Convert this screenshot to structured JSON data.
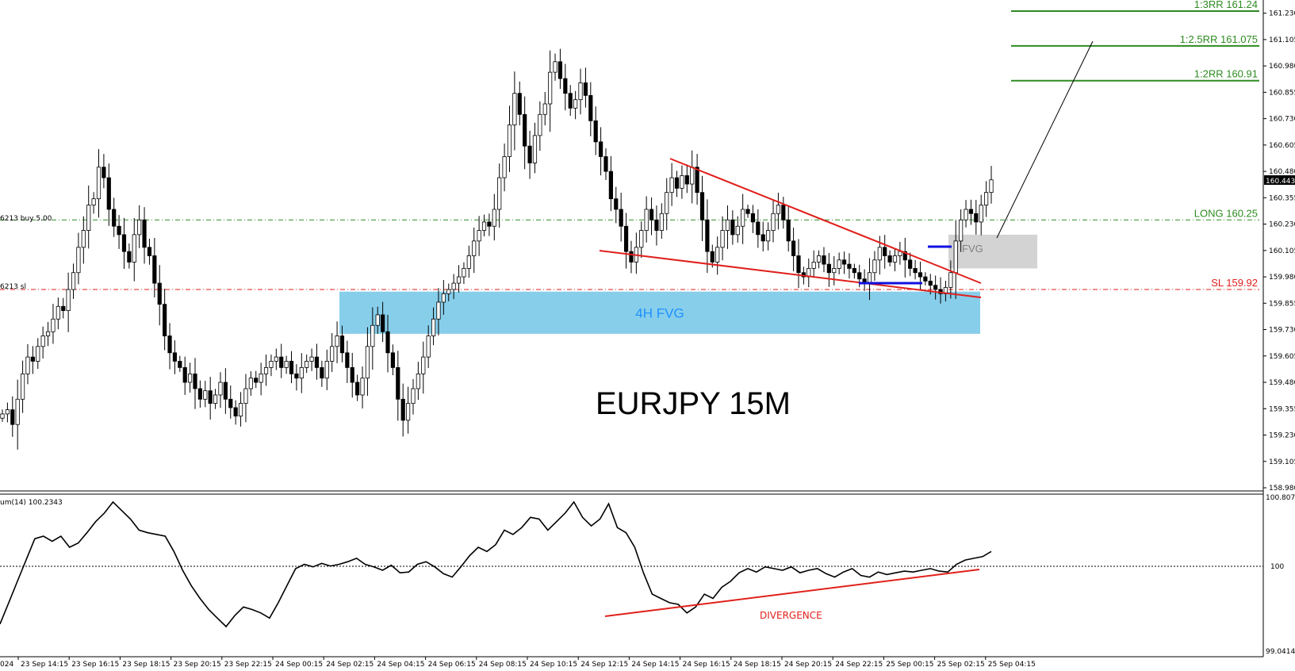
{
  "chart_data": {
    "type": "candlestick",
    "title": "EURJPY 15M",
    "price_axis": {
      "ticks": [
        "161.230",
        "161.105",
        "160.980",
        "160.855",
        "160.730",
        "160.605",
        "160.480",
        "160.355",
        "160.230",
        "160.105",
        "159.980",
        "159.855",
        "159.730",
        "159.605",
        "159.480",
        "159.355",
        "159.230",
        "159.105",
        "158.980"
      ],
      "ylim": [
        158.98,
        161.27
      ],
      "current_price": "160.443"
    },
    "time_axis": {
      "first_label": "024",
      "labels": [
        "23 Sep 14:15",
        "23 Sep 16:15",
        "23 Sep 18:15",
        "23 Sep 20:15",
        "23 Sep 22:15",
        "24 Sep 00:15",
        "24 Sep 02:15",
        "24 Sep 04:15",
        "24 Sep 06:15",
        "24 Sep 08:15",
        "24 Sep 10:15",
        "24 Sep 12:15",
        "24 Sep 14:15",
        "24 Sep 16:15",
        "24 Sep 18:15",
        "24 Sep 20:15",
        "24 Sep 22:15",
        "25 Sep 00:15",
        "25 Sep 02:15",
        "25 Sep 04:15"
      ]
    },
    "close_series": [
      159.33,
      159.35,
      159.28,
      159.4,
      159.52,
      159.6,
      159.58,
      159.65,
      159.7,
      159.72,
      159.78,
      159.84,
      159.82,
      159.92,
      160.0,
      160.12,
      160.2,
      160.32,
      160.35,
      160.5,
      160.45,
      160.3,
      160.22,
      160.18,
      160.1,
      160.05,
      160.18,
      160.25,
      160.12,
      160.08,
      159.95,
      159.85,
      159.7,
      159.62,
      159.58,
      159.55,
      159.48,
      159.52,
      159.45,
      159.4,
      159.44,
      159.38,
      159.42,
      159.48,
      159.4,
      159.36,
      159.32,
      159.38,
      159.45,
      159.5,
      159.48,
      159.52,
      159.55,
      159.58,
      159.6,
      159.55,
      159.58,
      159.52,
      159.5,
      159.55,
      159.58,
      159.6,
      159.55,
      159.5,
      159.58,
      159.65,
      159.7,
      159.62,
      159.55,
      159.48,
      159.42,
      159.5,
      159.65,
      159.75,
      159.8,
      159.72,
      159.62,
      159.55,
      159.4,
      159.3,
      159.38,
      159.45,
      159.52,
      159.6,
      159.7,
      159.78,
      159.86,
      159.9,
      159.92,
      159.95,
      159.98,
      160.02,
      160.08,
      160.15,
      160.2,
      160.24,
      160.22,
      160.3,
      160.45,
      160.55,
      160.7,
      160.85,
      160.75,
      160.6,
      160.52,
      160.65,
      160.75,
      160.8,
      160.95,
      161.0,
      160.92,
      160.85,
      160.78,
      160.82,
      160.9,
      160.84,
      160.72,
      160.62,
      160.55,
      160.48,
      160.35,
      160.3,
      160.22,
      160.1,
      160.05,
      160.12,
      160.2,
      160.3,
      160.25,
      160.2,
      160.28,
      160.38,
      160.45,
      160.4,
      160.46,
      160.42,
      160.5,
      160.38,
      160.25,
      160.1,
      160.05,
      160.12,
      160.2,
      160.25,
      160.18,
      160.22,
      160.3,
      160.28,
      160.24,
      160.18,
      160.15,
      160.2,
      160.28,
      160.32,
      160.25,
      160.15,
      160.08,
      160.0,
      159.98,
      160.02,
      160.05,
      160.08,
      160.04,
      160.0,
      160.02,
      160.06,
      160.04,
      160.02,
      160.0,
      159.97,
      159.95,
      160.0,
      160.06,
      160.12,
      160.08,
      160.05,
      160.08,
      160.1,
      160.06,
      160.02,
      160.0,
      159.98,
      159.96,
      159.94,
      159.92,
      159.9,
      159.93,
      160.0,
      160.15,
      160.25,
      160.3,
      160.28,
      160.24,
      160.32,
      160.38,
      160.44
    ],
    "horizontal_levels": [
      {
        "label": "1:3RR 161.24",
        "price": 161.24,
        "color": "#2e8b22"
      },
      {
        "label": "1:2.5RR 161.075",
        "price": 161.075,
        "color": "#2e8b22"
      },
      {
        "label": "1:2RR 160.91",
        "price": 160.91,
        "color": "#2e8b22"
      },
      {
        "label": "LONG 160.25",
        "price": 160.25,
        "color": "#2e8b22"
      },
      {
        "label": "SL 159.92",
        "price": 159.92,
        "color": "#e0201c"
      }
    ],
    "left_level_labels": {
      "buy": "6213 buy 5.00",
      "sl": "6213 sl"
    },
    "zones": [
      {
        "label": "4H FVG",
        "price_from": 159.71,
        "price_to": 159.91,
        "color": "#87ceeb"
      },
      {
        "label": "FVG",
        "price_from": 160.02,
        "price_to": 160.18,
        "color": "#d3d3d3"
      }
    ],
    "indicator": {
      "label": "um(14) 100.2343",
      "ticks": [
        "100.8072",
        "100",
        "99.0414"
      ],
      "ylim": [
        99.0414,
        100.8072
      ],
      "annotation": "DIVERGENCE",
      "series": [
        99.35,
        99.6,
        99.85,
        100.1,
        100.35,
        100.38,
        100.32,
        100.38,
        100.25,
        100.3,
        100.42,
        100.55,
        100.65,
        100.78,
        100.68,
        100.58,
        100.45,
        100.42,
        100.4,
        100.38,
        100.2,
        99.98,
        99.8,
        99.65,
        99.52,
        99.42,
        99.32,
        99.45,
        99.55,
        99.52,
        99.48,
        99.42,
        99.6,
        99.8,
        100.0,
        100.05,
        100.02,
        100.06,
        100.03,
        100.05,
        100.08,
        100.12,
        100.05,
        100.02,
        99.98,
        100.04,
        99.95,
        99.96,
        100.05,
        100.08,
        100.02,
        99.94,
        99.9,
        100.02,
        100.15,
        100.25,
        100.2,
        100.28,
        100.45,
        100.4,
        100.48,
        100.6,
        100.58,
        100.45,
        100.55,
        100.65,
        100.78,
        100.6,
        100.5,
        100.58,
        100.76,
        100.48,
        100.42,
        100.25,
        99.95,
        99.7,
        99.65,
        99.6,
        99.58,
        99.48,
        99.55,
        99.7,
        99.65,
        99.78,
        99.85,
        99.95,
        100.0,
        99.96,
        100.02,
        100.0,
        99.98,
        100.02,
        99.95,
        99.98,
        100.0,
        99.94,
        99.9,
        99.96,
        100.0,
        99.92,
        99.9,
        99.96,
        99.93,
        99.95,
        99.97,
        99.96,
        99.98,
        100.0,
        99.97,
        99.96,
        100.05,
        100.1,
        100.12,
        100.14,
        100.2
      ]
    }
  }
}
